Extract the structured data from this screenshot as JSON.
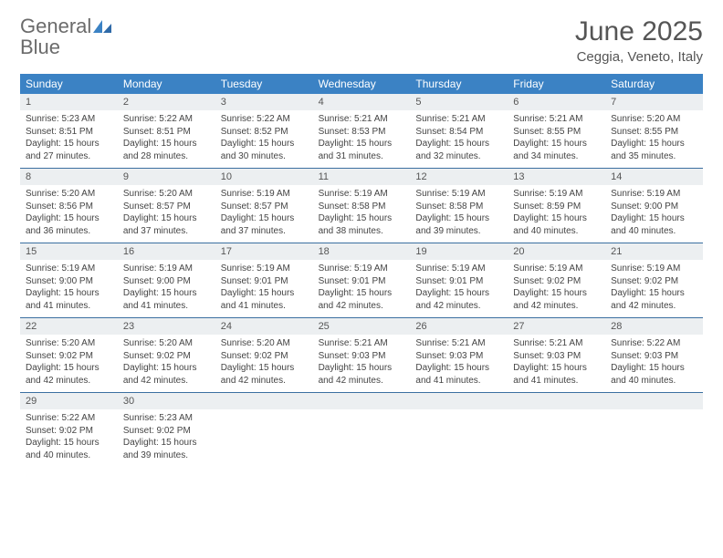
{
  "logo": {
    "word1": "General",
    "word2": "Blue"
  },
  "title": "June 2025",
  "location": "Ceggia, Veneto, Italy",
  "colors": {
    "header_bg": "#3b82c4",
    "header_text": "#ffffff",
    "daynum_bg": "#eceff1",
    "border": "#3b6fa0",
    "body_text": "#444444",
    "title_text": "#555555"
  },
  "weekdays": [
    "Sunday",
    "Monday",
    "Tuesday",
    "Wednesday",
    "Thursday",
    "Friday",
    "Saturday"
  ],
  "weeks": [
    [
      {
        "n": "1",
        "sr": "Sunrise: 5:23 AM",
        "ss": "Sunset: 8:51 PM",
        "d1": "Daylight: 15 hours",
        "d2": "and 27 minutes."
      },
      {
        "n": "2",
        "sr": "Sunrise: 5:22 AM",
        "ss": "Sunset: 8:51 PM",
        "d1": "Daylight: 15 hours",
        "d2": "and 28 minutes."
      },
      {
        "n": "3",
        "sr": "Sunrise: 5:22 AM",
        "ss": "Sunset: 8:52 PM",
        "d1": "Daylight: 15 hours",
        "d2": "and 30 minutes."
      },
      {
        "n": "4",
        "sr": "Sunrise: 5:21 AM",
        "ss": "Sunset: 8:53 PM",
        "d1": "Daylight: 15 hours",
        "d2": "and 31 minutes."
      },
      {
        "n": "5",
        "sr": "Sunrise: 5:21 AM",
        "ss": "Sunset: 8:54 PM",
        "d1": "Daylight: 15 hours",
        "d2": "and 32 minutes."
      },
      {
        "n": "6",
        "sr": "Sunrise: 5:21 AM",
        "ss": "Sunset: 8:55 PM",
        "d1": "Daylight: 15 hours",
        "d2": "and 34 minutes."
      },
      {
        "n": "7",
        "sr": "Sunrise: 5:20 AM",
        "ss": "Sunset: 8:55 PM",
        "d1": "Daylight: 15 hours",
        "d2": "and 35 minutes."
      }
    ],
    [
      {
        "n": "8",
        "sr": "Sunrise: 5:20 AM",
        "ss": "Sunset: 8:56 PM",
        "d1": "Daylight: 15 hours",
        "d2": "and 36 minutes."
      },
      {
        "n": "9",
        "sr": "Sunrise: 5:20 AM",
        "ss": "Sunset: 8:57 PM",
        "d1": "Daylight: 15 hours",
        "d2": "and 37 minutes."
      },
      {
        "n": "10",
        "sr": "Sunrise: 5:19 AM",
        "ss": "Sunset: 8:57 PM",
        "d1": "Daylight: 15 hours",
        "d2": "and 37 minutes."
      },
      {
        "n": "11",
        "sr": "Sunrise: 5:19 AM",
        "ss": "Sunset: 8:58 PM",
        "d1": "Daylight: 15 hours",
        "d2": "and 38 minutes."
      },
      {
        "n": "12",
        "sr": "Sunrise: 5:19 AM",
        "ss": "Sunset: 8:58 PM",
        "d1": "Daylight: 15 hours",
        "d2": "and 39 minutes."
      },
      {
        "n": "13",
        "sr": "Sunrise: 5:19 AM",
        "ss": "Sunset: 8:59 PM",
        "d1": "Daylight: 15 hours",
        "d2": "and 40 minutes."
      },
      {
        "n": "14",
        "sr": "Sunrise: 5:19 AM",
        "ss": "Sunset: 9:00 PM",
        "d1": "Daylight: 15 hours",
        "d2": "and 40 minutes."
      }
    ],
    [
      {
        "n": "15",
        "sr": "Sunrise: 5:19 AM",
        "ss": "Sunset: 9:00 PM",
        "d1": "Daylight: 15 hours",
        "d2": "and 41 minutes."
      },
      {
        "n": "16",
        "sr": "Sunrise: 5:19 AM",
        "ss": "Sunset: 9:00 PM",
        "d1": "Daylight: 15 hours",
        "d2": "and 41 minutes."
      },
      {
        "n": "17",
        "sr": "Sunrise: 5:19 AM",
        "ss": "Sunset: 9:01 PM",
        "d1": "Daylight: 15 hours",
        "d2": "and 41 minutes."
      },
      {
        "n": "18",
        "sr": "Sunrise: 5:19 AM",
        "ss": "Sunset: 9:01 PM",
        "d1": "Daylight: 15 hours",
        "d2": "and 42 minutes."
      },
      {
        "n": "19",
        "sr": "Sunrise: 5:19 AM",
        "ss": "Sunset: 9:01 PM",
        "d1": "Daylight: 15 hours",
        "d2": "and 42 minutes."
      },
      {
        "n": "20",
        "sr": "Sunrise: 5:19 AM",
        "ss": "Sunset: 9:02 PM",
        "d1": "Daylight: 15 hours",
        "d2": "and 42 minutes."
      },
      {
        "n": "21",
        "sr": "Sunrise: 5:19 AM",
        "ss": "Sunset: 9:02 PM",
        "d1": "Daylight: 15 hours",
        "d2": "and 42 minutes."
      }
    ],
    [
      {
        "n": "22",
        "sr": "Sunrise: 5:20 AM",
        "ss": "Sunset: 9:02 PM",
        "d1": "Daylight: 15 hours",
        "d2": "and 42 minutes."
      },
      {
        "n": "23",
        "sr": "Sunrise: 5:20 AM",
        "ss": "Sunset: 9:02 PM",
        "d1": "Daylight: 15 hours",
        "d2": "and 42 minutes."
      },
      {
        "n": "24",
        "sr": "Sunrise: 5:20 AM",
        "ss": "Sunset: 9:02 PM",
        "d1": "Daylight: 15 hours",
        "d2": "and 42 minutes."
      },
      {
        "n": "25",
        "sr": "Sunrise: 5:21 AM",
        "ss": "Sunset: 9:03 PM",
        "d1": "Daylight: 15 hours",
        "d2": "and 42 minutes."
      },
      {
        "n": "26",
        "sr": "Sunrise: 5:21 AM",
        "ss": "Sunset: 9:03 PM",
        "d1": "Daylight: 15 hours",
        "d2": "and 41 minutes."
      },
      {
        "n": "27",
        "sr": "Sunrise: 5:21 AM",
        "ss": "Sunset: 9:03 PM",
        "d1": "Daylight: 15 hours",
        "d2": "and 41 minutes."
      },
      {
        "n": "28",
        "sr": "Sunrise: 5:22 AM",
        "ss": "Sunset: 9:03 PM",
        "d1": "Daylight: 15 hours",
        "d2": "and 40 minutes."
      }
    ],
    [
      {
        "n": "29",
        "sr": "Sunrise: 5:22 AM",
        "ss": "Sunset: 9:02 PM",
        "d1": "Daylight: 15 hours",
        "d2": "and 40 minutes."
      },
      {
        "n": "30",
        "sr": "Sunrise: 5:23 AM",
        "ss": "Sunset: 9:02 PM",
        "d1": "Daylight: 15 hours",
        "d2": "and 39 minutes."
      },
      {
        "empty": true
      },
      {
        "empty": true
      },
      {
        "empty": true
      },
      {
        "empty": true
      },
      {
        "empty": true
      }
    ]
  ]
}
